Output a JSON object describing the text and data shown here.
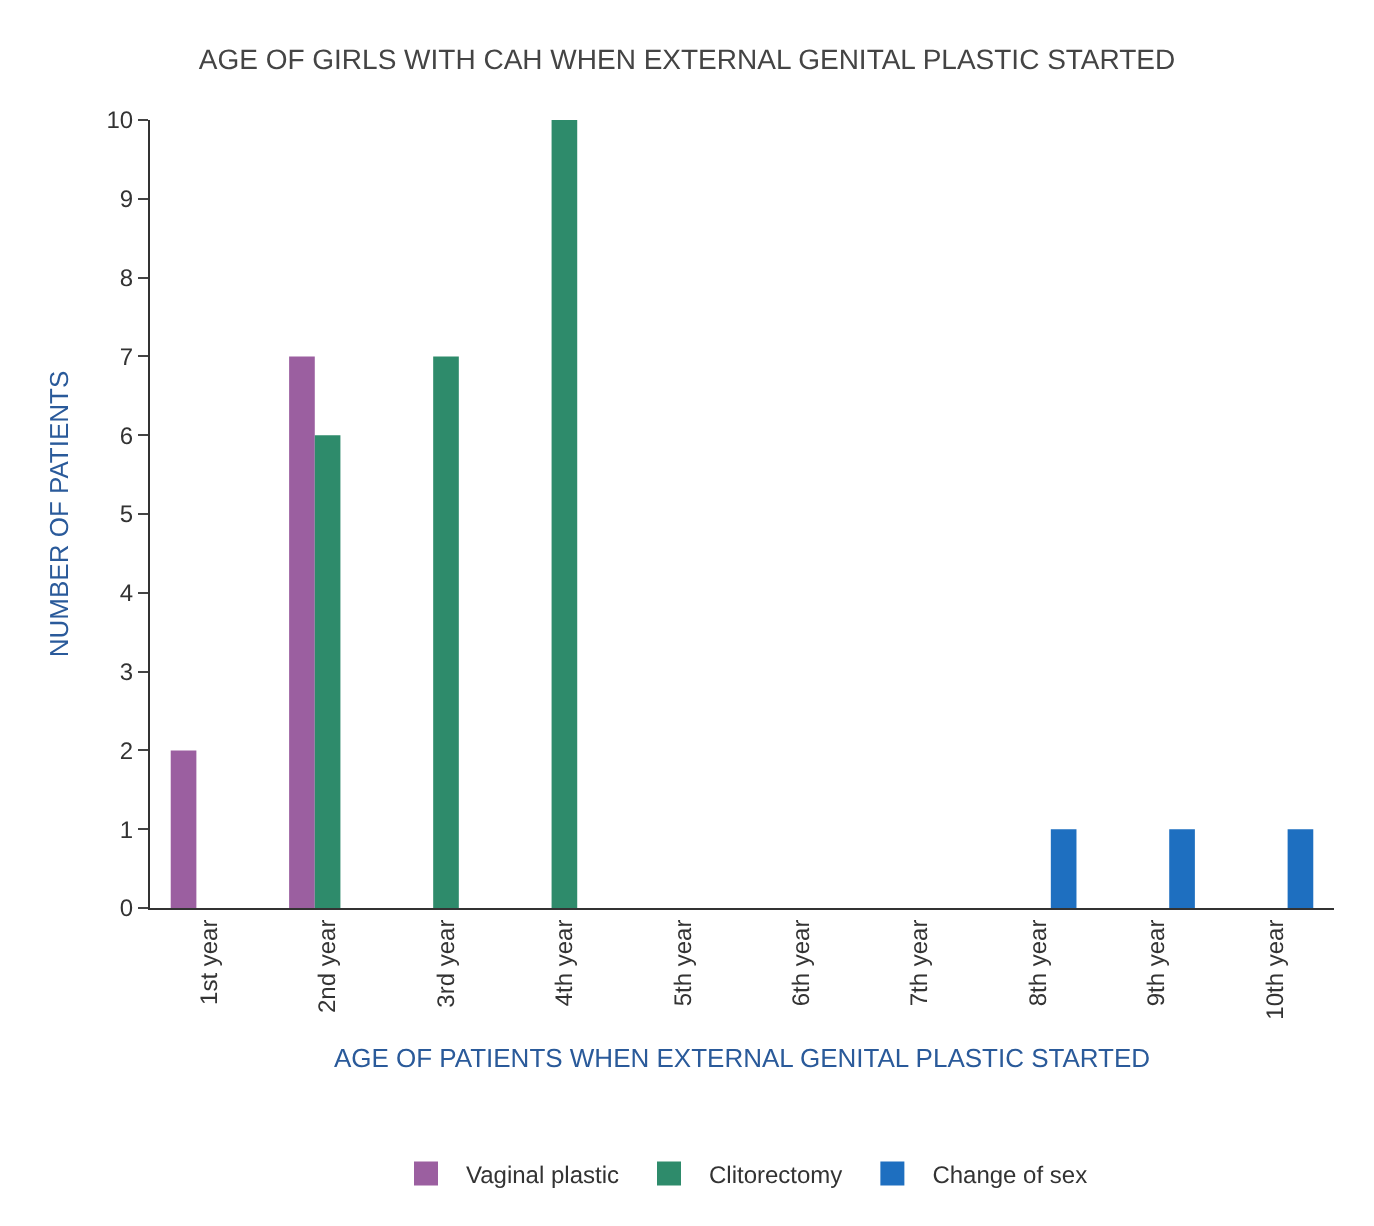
{
  "chart_data": {
    "type": "bar",
    "title": "AGE OF GIRLS WITH CAH WHEN EXTERNAL GENITAL PLASTIC STARTED",
    "xlabel": "AGE OF PATIENTS WHEN EXTERNAL GENITAL PLASTIC STARTED",
    "ylabel": "NUMBER OF PATIENTS",
    "categories": [
      "1st year",
      "2nd year",
      "3rd year",
      "4th year",
      "5th year",
      "6th year",
      "7th year",
      "8th year",
      "9th year",
      "10th year"
    ],
    "series": [
      {
        "name": "Vaginal plastic",
        "color": "#9b5fa0",
        "values": [
          2,
          7,
          0,
          0,
          0,
          0,
          0,
          0,
          0,
          0
        ]
      },
      {
        "name": "Clitorectomy",
        "color": "#2e8b6b",
        "values": [
          0,
          6,
          7,
          10,
          0,
          0,
          0,
          0,
          0,
          0
        ]
      },
      {
        "name": "Change of sex",
        "color": "#1e6fc0",
        "values": [
          0,
          0,
          0,
          0,
          0,
          0,
          0,
          1,
          1,
          1
        ]
      }
    ],
    "ylim": [
      0,
      10
    ],
    "yticks": [
      0,
      1,
      2,
      3,
      4,
      5,
      6,
      7,
      8,
      9,
      10
    ],
    "legend": "bottom"
  }
}
